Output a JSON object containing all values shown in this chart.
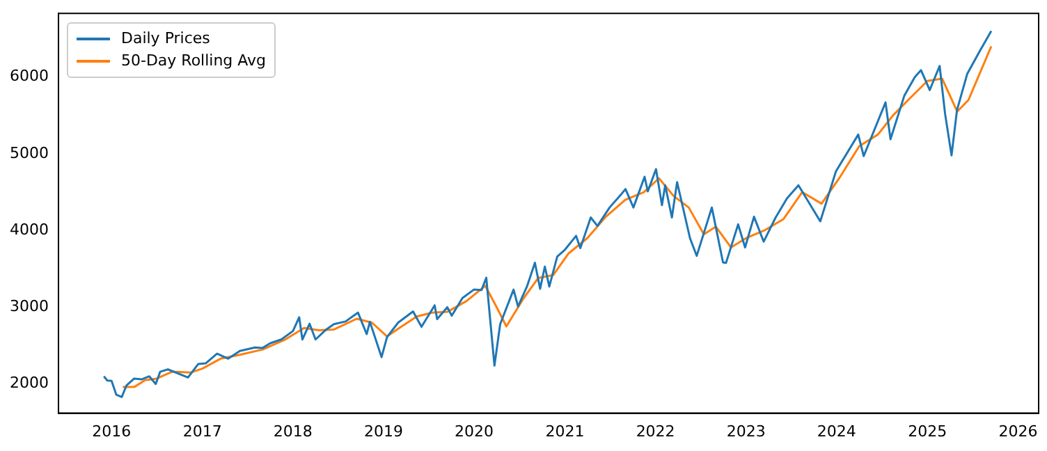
{
  "chart_data": {
    "type": "line",
    "legend": "top left",
    "grid": false,
    "marker": "none",
    "line_style": "solid",
    "xlim": [
      "2015-06-01",
      "2026-03-25"
    ],
    "xticks": [
      "2016",
      "2017",
      "2018",
      "2019",
      "2020",
      "2021",
      "2022",
      "2023",
      "2024",
      "2025",
      "2026"
    ],
    "ylim": [
      1620,
      6830
    ],
    "yticks": [
      2000,
      3000,
      4000,
      5000,
      6000
    ],
    "series": [
      {
        "name": "Daily Prices",
        "color": "#1f77b4",
        "x": [
          "2015-12-01",
          "2015-12-15",
          "2016-01-01",
          "2016-01-20",
          "2016-02-11",
          "2016-03-01",
          "2016-04-01",
          "2016-05-01",
          "2016-06-01",
          "2016-06-27",
          "2016-07-15",
          "2016-08-15",
          "2016-09-15",
          "2016-11-04",
          "2016-12-15",
          "2017-01-15",
          "2017-03-01",
          "2017-04-15",
          "2017-06-01",
          "2017-08-01",
          "2017-09-01",
          "2017-10-01",
          "2017-11-15",
          "2018-01-01",
          "2018-01-26",
          "2018-02-08",
          "2018-03-09",
          "2018-04-02",
          "2018-05-15",
          "2018-06-15",
          "2018-08-01",
          "2018-09-20",
          "2018-10-25",
          "2018-11-07",
          "2018-12-24",
          "2019-01-15",
          "2019-03-01",
          "2019-04-30",
          "2019-06-03",
          "2019-07-26",
          "2019-08-05",
          "2019-09-15",
          "2019-10-03",
          "2019-11-15",
          "2019-12-31",
          "2020-01-31",
          "2020-02-19",
          "2020-03-23",
          "2020-04-15",
          "2020-06-08",
          "2020-06-26",
          "2020-08-01",
          "2020-09-02",
          "2020-09-23",
          "2020-10-12",
          "2020-10-30",
          "2020-12-01",
          "2021-01-01",
          "2021-02-15",
          "2021-03-04",
          "2021-04-15",
          "2021-05-12",
          "2021-06-30",
          "2021-08-15",
          "2021-09-02",
          "2021-10-04",
          "2021-11-18",
          "2021-12-01",
          "2022-01-03",
          "2022-01-27",
          "2022-02-09",
          "2022-03-08",
          "2022-03-29",
          "2022-05-20",
          "2022-06-16",
          "2022-08-16",
          "2022-09-30",
          "2022-10-12",
          "2022-11-30",
          "2022-12-28",
          "2023-02-02",
          "2023-03-13",
          "2023-04-30",
          "2023-06-15",
          "2023-07-31",
          "2023-10-27",
          "2023-12-29",
          "2024-03-28",
          "2024-04-19",
          "2024-07-16",
          "2024-08-05",
          "2024-09-30",
          "2024-11-11",
          "2024-12-06",
          "2025-01-10",
          "2025-02-19",
          "2025-03-13",
          "2025-04-08",
          "2025-04-30",
          "2025-06-10",
          "2025-07-31",
          "2025-09-15"
        ],
        "values": [
          2100,
          2045,
          2040,
          1860,
          1830,
          1980,
          2070,
          2060,
          2100,
          2000,
          2160,
          2190,
          2150,
          2085,
          2260,
          2270,
          2395,
          2330,
          2430,
          2475,
          2470,
          2530,
          2580,
          2690,
          2870,
          2580,
          2785,
          2580,
          2710,
          2780,
          2815,
          2930,
          2650,
          2810,
          2350,
          2610,
          2800,
          2945,
          2745,
          3025,
          2845,
          3000,
          2890,
          3120,
          3230,
          3225,
          3385,
          2240,
          2780,
          3230,
          3010,
          3270,
          3580,
          3240,
          3530,
          3270,
          3660,
          3750,
          3930,
          3770,
          4170,
          4060,
          4300,
          4470,
          4540,
          4300,
          4700,
          4510,
          4800,
          4330,
          4590,
          4170,
          4630,
          3900,
          3670,
          4300,
          3585,
          3577,
          4080,
          3780,
          4180,
          3855,
          4170,
          4420,
          4590,
          4120,
          4770,
          5250,
          4970,
          5670,
          5190,
          5760,
          6000,
          6090,
          5830,
          6145,
          5520,
          4980,
          5570,
          6040,
          6340,
          6600
        ]
      },
      {
        "name": "50-Day Rolling Avg",
        "color": "#ff7f0e",
        "x": [
          "2016-02-15",
          "2016-04-01",
          "2016-05-15",
          "2016-07-01",
          "2016-09-01",
          "2016-11-15",
          "2017-01-01",
          "2017-03-15",
          "2017-06-01",
          "2017-09-01",
          "2017-12-01",
          "2018-02-15",
          "2018-04-15",
          "2018-06-15",
          "2018-09-15",
          "2018-11-15",
          "2019-01-15",
          "2019-03-15",
          "2019-05-15",
          "2019-07-15",
          "2019-09-15",
          "2019-12-01",
          "2020-02-15",
          "2020-04-01",
          "2020-05-10",
          "2020-07-15",
          "2020-09-15",
          "2020-11-15",
          "2021-01-15",
          "2021-04-01",
          "2021-06-15",
          "2021-09-01",
          "2021-11-15",
          "2022-01-15",
          "2022-03-15",
          "2022-05-15",
          "2022-07-15",
          "2022-09-01",
          "2022-11-01",
          "2023-01-01",
          "2023-03-15",
          "2023-06-01",
          "2023-08-15",
          "2023-11-01",
          "2024-01-15",
          "2024-04-01",
          "2024-06-15",
          "2024-08-15",
          "2024-10-15",
          "2025-01-01",
          "2025-03-01",
          "2025-05-01",
          "2025-06-15",
          "2025-09-15"
        ],
        "values": [
          1960,
          1960,
          2050,
          2070,
          2160,
          2150,
          2200,
          2330,
          2380,
          2450,
          2580,
          2730,
          2700,
          2710,
          2850,
          2800,
          2620,
          2750,
          2880,
          2930,
          2940,
          3080,
          3280,
          3000,
          2750,
          3100,
          3380,
          3420,
          3700,
          3900,
          4180,
          4400,
          4500,
          4680,
          4450,
          4300,
          3950,
          4050,
          3780,
          3900,
          4000,
          4150,
          4500,
          4350,
          4700,
          5100,
          5250,
          5500,
          5700,
          5950,
          5980,
          5550,
          5700,
          6400
        ]
      }
    ]
  }
}
